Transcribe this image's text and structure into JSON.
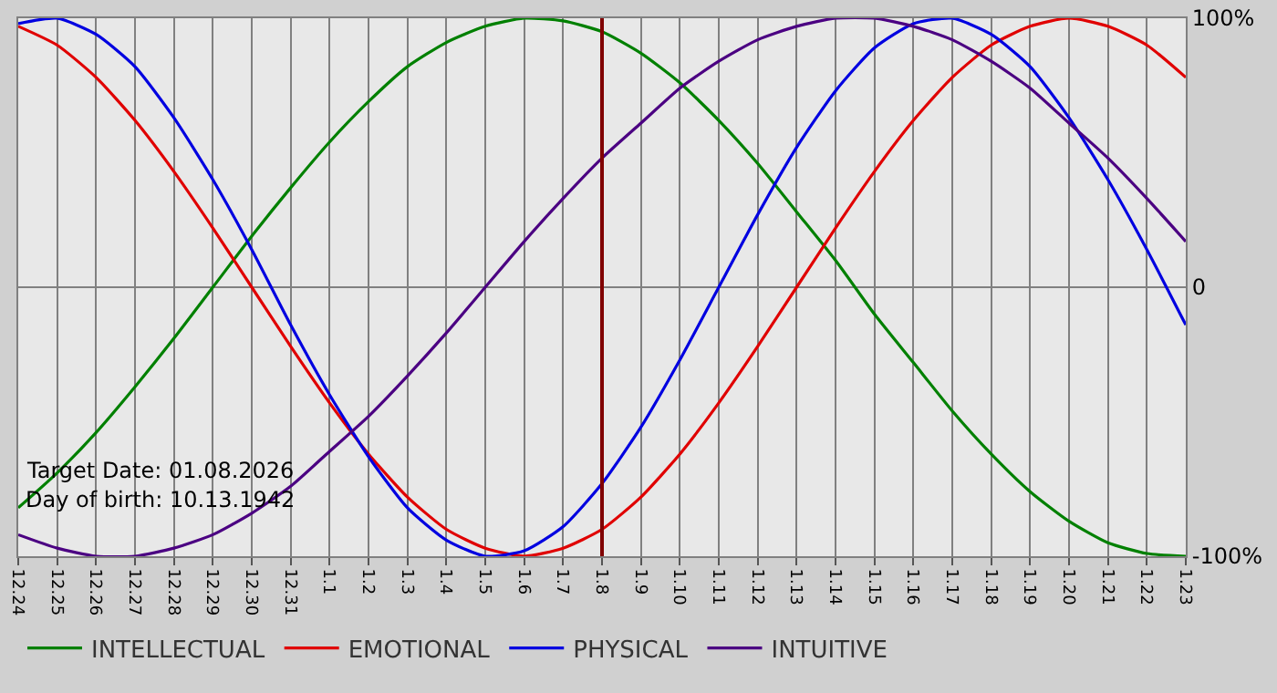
{
  "chart_data": {
    "type": "line",
    "categories": [
      "12.24",
      "12.25",
      "12.26",
      "12.27",
      "12.28",
      "12.29",
      "12.30",
      "12.31",
      "1.1",
      "1.2",
      "1.3",
      "1.4",
      "1.5",
      "1.6",
      "1.7",
      "1.8",
      "1.9",
      "1.10",
      "1.11",
      "1.12",
      "1.13",
      "1.14",
      "1.15",
      "1.16",
      "1.17",
      "1.18",
      "1.19",
      "1.20",
      "1.21",
      "1.22",
      "1.23"
    ],
    "series": [
      {
        "name": "INTELLECTUAL",
        "color": "#008000",
        "values": [
          -82,
          -69,
          -54,
          -37,
          -19,
          0,
          19,
          37,
          54,
          69,
          82,
          91,
          97,
          100,
          99,
          95,
          87,
          76,
          62,
          46,
          28,
          10,
          -10,
          -28,
          -46,
          -62,
          -76,
          -87,
          -95,
          -99,
          -100
        ]
      },
      {
        "name": "EMOTIONAL",
        "color": "#e00000",
        "values": [
          97,
          90,
          78,
          62,
          43,
          22,
          0,
          -22,
          -43,
          -62,
          -78,
          -90,
          -97,
          -100,
          -97,
          -90,
          -78,
          -62,
          -43,
          -22,
          0,
          22,
          43,
          62,
          78,
          90,
          97,
          100,
          97,
          90,
          78
        ]
      },
      {
        "name": "PHYSICAL",
        "color": "#0000e0",
        "values": [
          98,
          100,
          94,
          82,
          63,
          40,
          14,
          -14,
          -40,
          -63,
          -82,
          -94,
          -100,
          -98,
          -89,
          -73,
          -52,
          -27,
          0,
          27,
          52,
          73,
          89,
          98,
          100,
          94,
          82,
          63,
          40,
          14,
          -14
        ]
      },
      {
        "name": "INTUITIVE",
        "color": "#4b0082",
        "values": [
          -92,
          -97,
          -100,
          -100,
          -97,
          -92,
          -84,
          -74,
          -61,
          -48,
          -33,
          -17,
          0,
          17,
          33,
          48,
          61,
          74,
          84,
          92,
          97,
          100,
          100,
          97,
          92,
          84,
          74,
          61,
          48,
          33,
          17
        ]
      }
    ],
    "ylim": [
      -100,
      100
    ],
    "yticks": [
      {
        "value": -100,
        "label": "-100%"
      },
      0,
      {
        "value": 100,
        "label": "100%"
      }
    ],
    "grid": true,
    "legend": "bottom left",
    "marker": "none",
    "line_style": "solid",
    "ref_lines": [
      {
        "axis": "x",
        "value": "1.8",
        "color": "#800000"
      }
    ],
    "annotations": [
      "Target Date: 01.08.2026",
      "Day of birth: 10.13.1942"
    ]
  }
}
